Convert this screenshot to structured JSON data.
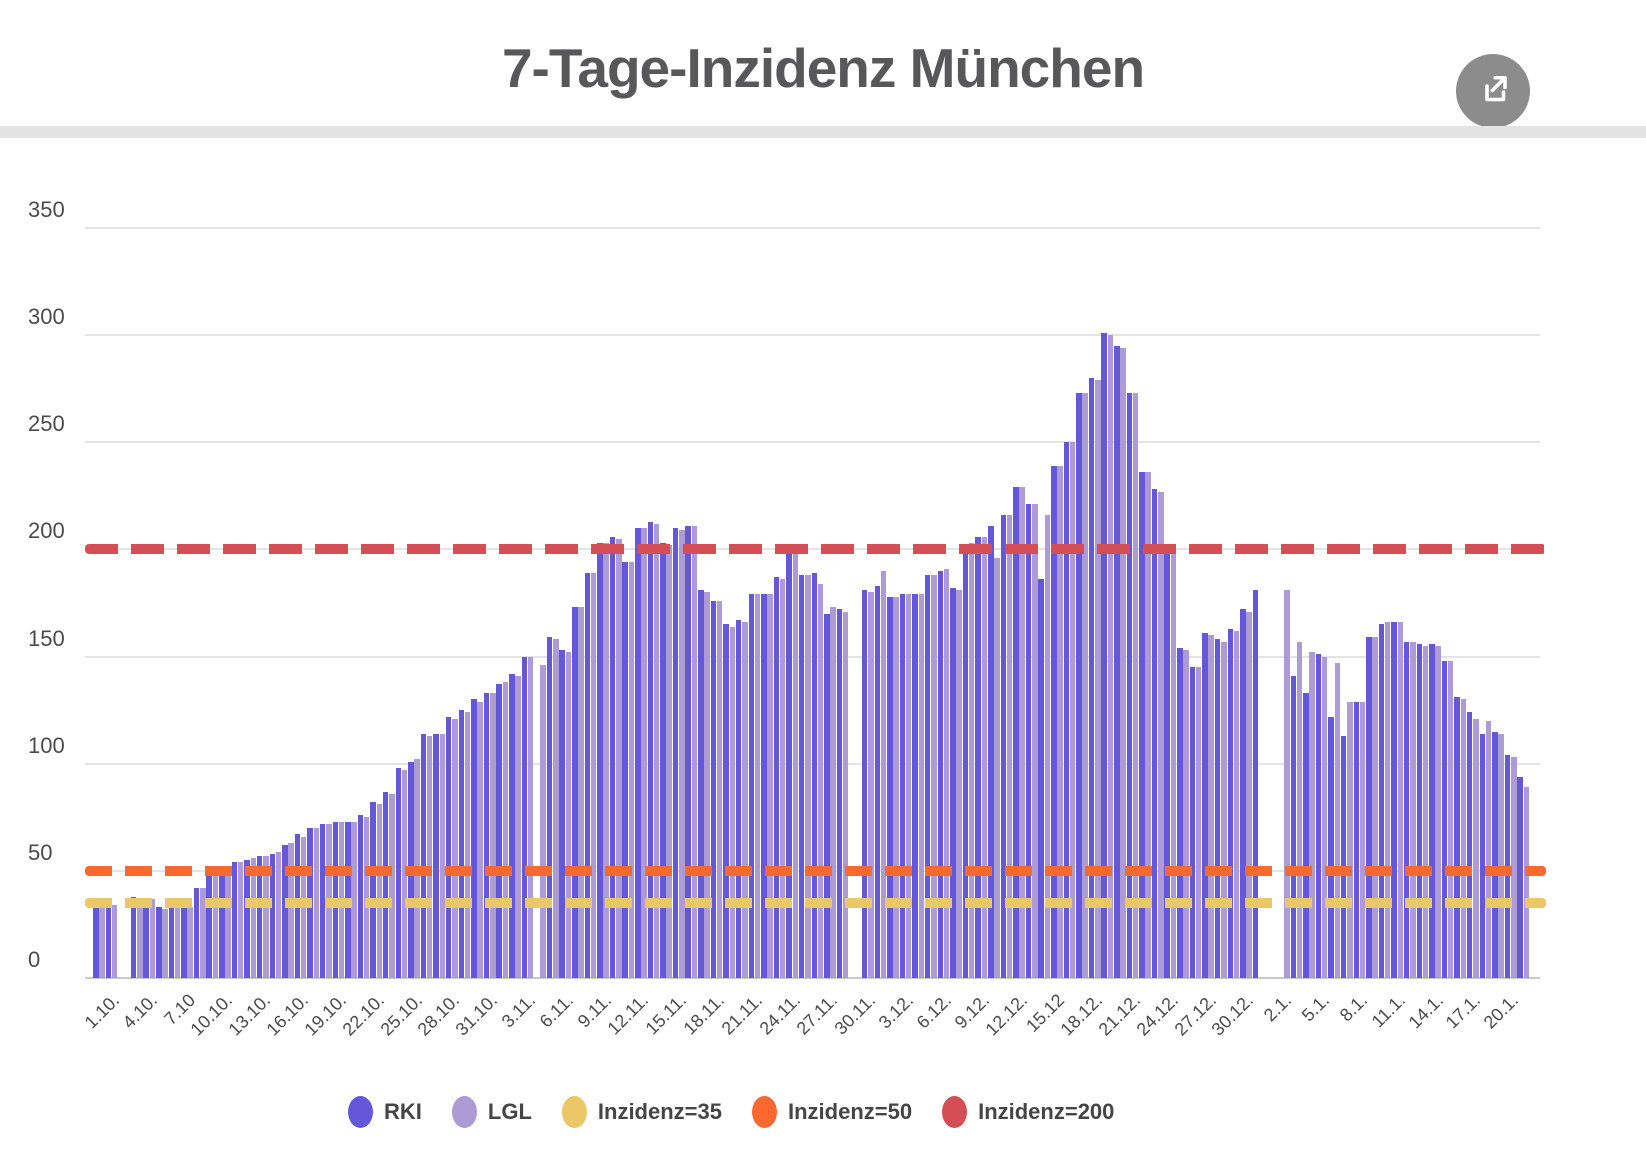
{
  "title": "7-Tage-Inzidenz München",
  "colors": {
    "rki": "#6557d9",
    "lgl": "#ac9bd4",
    "inzidenz35": "#ebc768",
    "inzidenz50": "#f9682f",
    "inzidenz200": "#d44e55"
  },
  "legend": [
    {
      "label": "RKI",
      "color": "#6557d9"
    },
    {
      "label": "LGL",
      "color": "#ac9bd4"
    },
    {
      "label": "Inzidenz=35",
      "color": "#ebc768"
    },
    {
      "label": "Inzidenz=50",
      "color": "#f9682f"
    },
    {
      "label": "Inzidenz=200",
      "color": "#d44e55"
    }
  ],
  "chart_data": {
    "type": "bar",
    "title": "7-Tage-Inzidenz München",
    "ylabel": "",
    "xlabel": "",
    "ylim": [
      0,
      387
    ],
    "grid": true,
    "legend_position": "bottom",
    "y_ticks": [
      0,
      50,
      100,
      150,
      200,
      250,
      300,
      350
    ],
    "series_names": [
      "RKI",
      "LGL"
    ],
    "reference_lines": [
      {
        "label": "Inzidenz=35",
        "value": 35,
        "color": "#ebc768",
        "dash": 27,
        "gap": 13
      },
      {
        "label": "Inzidenz=50",
        "value": 50,
        "color": "#f9682f",
        "dash": 27,
        "gap": 13
      },
      {
        "label": "Inzidenz=200",
        "value": 200,
        "color": "#d44e55",
        "dash": 33,
        "gap": 13
      }
    ],
    "x_tick_step": 3,
    "x_tick_labels": [
      "1.10.",
      "4.10.",
      "7.10",
      "10.10.",
      "13.10.",
      "16.10.",
      "19.10.",
      "22.10.",
      "25.10.",
      "28.10.",
      "31.10.",
      "3.11.",
      "6.11.",
      "9.11.",
      "12.11.",
      "15.11.",
      "18.11.",
      "21.11.",
      "24.11.",
      "27.11.",
      "30.11.",
      "3.12.",
      "6.12.",
      "9.12.",
      "12.12.",
      "15.12",
      "18.12.",
      "21.12.",
      "24.12.",
      "27.12.",
      "30.12.",
      "2.1.",
      "5.1.",
      "8.1.",
      "11.1.",
      "14.1.",
      "17.1.",
      "20.1."
    ],
    "days": [
      [
        34,
        36
      ],
      [
        36,
        34
      ],
      [
        null,
        null
      ],
      [
        38,
        36
      ],
      [
        36,
        37
      ],
      [
        33,
        32
      ],
      [
        35,
        35
      ],
      [
        34,
        33
      ],
      [
        42,
        42
      ],
      [
        48,
        48
      ],
      [
        49,
        51
      ],
      [
        54,
        54
      ],
      [
        55,
        56
      ],
      [
        57,
        57
      ],
      [
        58,
        59
      ],
      [
        62,
        63
      ],
      [
        67,
        66
      ],
      [
        70,
        70
      ],
      [
        72,
        72
      ],
      [
        73,
        73
      ],
      [
        73,
        73
      ],
      [
        76,
        75
      ],
      [
        82,
        81
      ],
      [
        87,
        86
      ],
      [
        98,
        97
      ],
      [
        101,
        102
      ],
      [
        114,
        113
      ],
      [
        114,
        114
      ],
      [
        122,
        121
      ],
      [
        125,
        124
      ],
      [
        130,
        129
      ],
      [
        133,
        133
      ],
      [
        137,
        138
      ],
      [
        142,
        141
      ],
      [
        150,
        150
      ],
      [
        null,
        146
      ],
      [
        159,
        158
      ],
      [
        153,
        152
      ],
      [
        173,
        173
      ],
      [
        189,
        189
      ],
      [
        203,
        203
      ],
      [
        206,
        205
      ],
      [
        194,
        194
      ],
      [
        210,
        210
      ],
      [
        213,
        212
      ],
      [
        203,
        202
      ],
      [
        210,
        209
      ],
      [
        211,
        211
      ],
      [
        181,
        180
      ],
      [
        176,
        176
      ],
      [
        165,
        164
      ],
      [
        167,
        166
      ],
      [
        179,
        179
      ],
      [
        179,
        179
      ],
      [
        187,
        186
      ],
      [
        199,
        198
      ],
      [
        188,
        188
      ],
      [
        189,
        184
      ],
      [
        170,
        173
      ],
      [
        172,
        171
      ],
      [
        null,
        null
      ],
      [
        181,
        180
      ],
      [
        183,
        190
      ],
      [
        178,
        178
      ],
      [
        179,
        179
      ],
      [
        179,
        179
      ],
      [
        188,
        188
      ],
      [
        190,
        191
      ],
      [
        182,
        181
      ],
      [
        202,
        203
      ],
      [
        206,
        206
      ],
      [
        211,
        196
      ],
      [
        216,
        216
      ],
      [
        229,
        229
      ],
      [
        221,
        221
      ],
      [
        186,
        216
      ],
      [
        239,
        239
      ],
      [
        250,
        250
      ],
      [
        273,
        273
      ],
      [
        280,
        279
      ],
      [
        301,
        300
      ],
      [
        295,
        294
      ],
      [
        273,
        273
      ],
      [
        236,
        236
      ],
      [
        228,
        227
      ],
      [
        201,
        201
      ],
      [
        154,
        153
      ],
      [
        145,
        145
      ],
      [
        161,
        160
      ],
      [
        158,
        157
      ],
      [
        163,
        162
      ],
      [
        172,
        171
      ],
      [
        181,
        null
      ],
      [
        null,
        null
      ],
      [
        null,
        181
      ],
      [
        141,
        157
      ],
      [
        133,
        152
      ],
      [
        151,
        150
      ],
      [
        122,
        147
      ],
      [
        113,
        129
      ],
      [
        129,
        129
      ],
      [
        159,
        159
      ],
      [
        165,
        166
      ],
      [
        166,
        166
      ],
      [
        157,
        157
      ],
      [
        156,
        155
      ],
      [
        156,
        155
      ],
      [
        148,
        148
      ],
      [
        131,
        130
      ],
      [
        124,
        121
      ],
      [
        114,
        120
      ],
      [
        115,
        114
      ],
      [
        104,
        103
      ],
      [
        94,
        89
      ]
    ]
  }
}
